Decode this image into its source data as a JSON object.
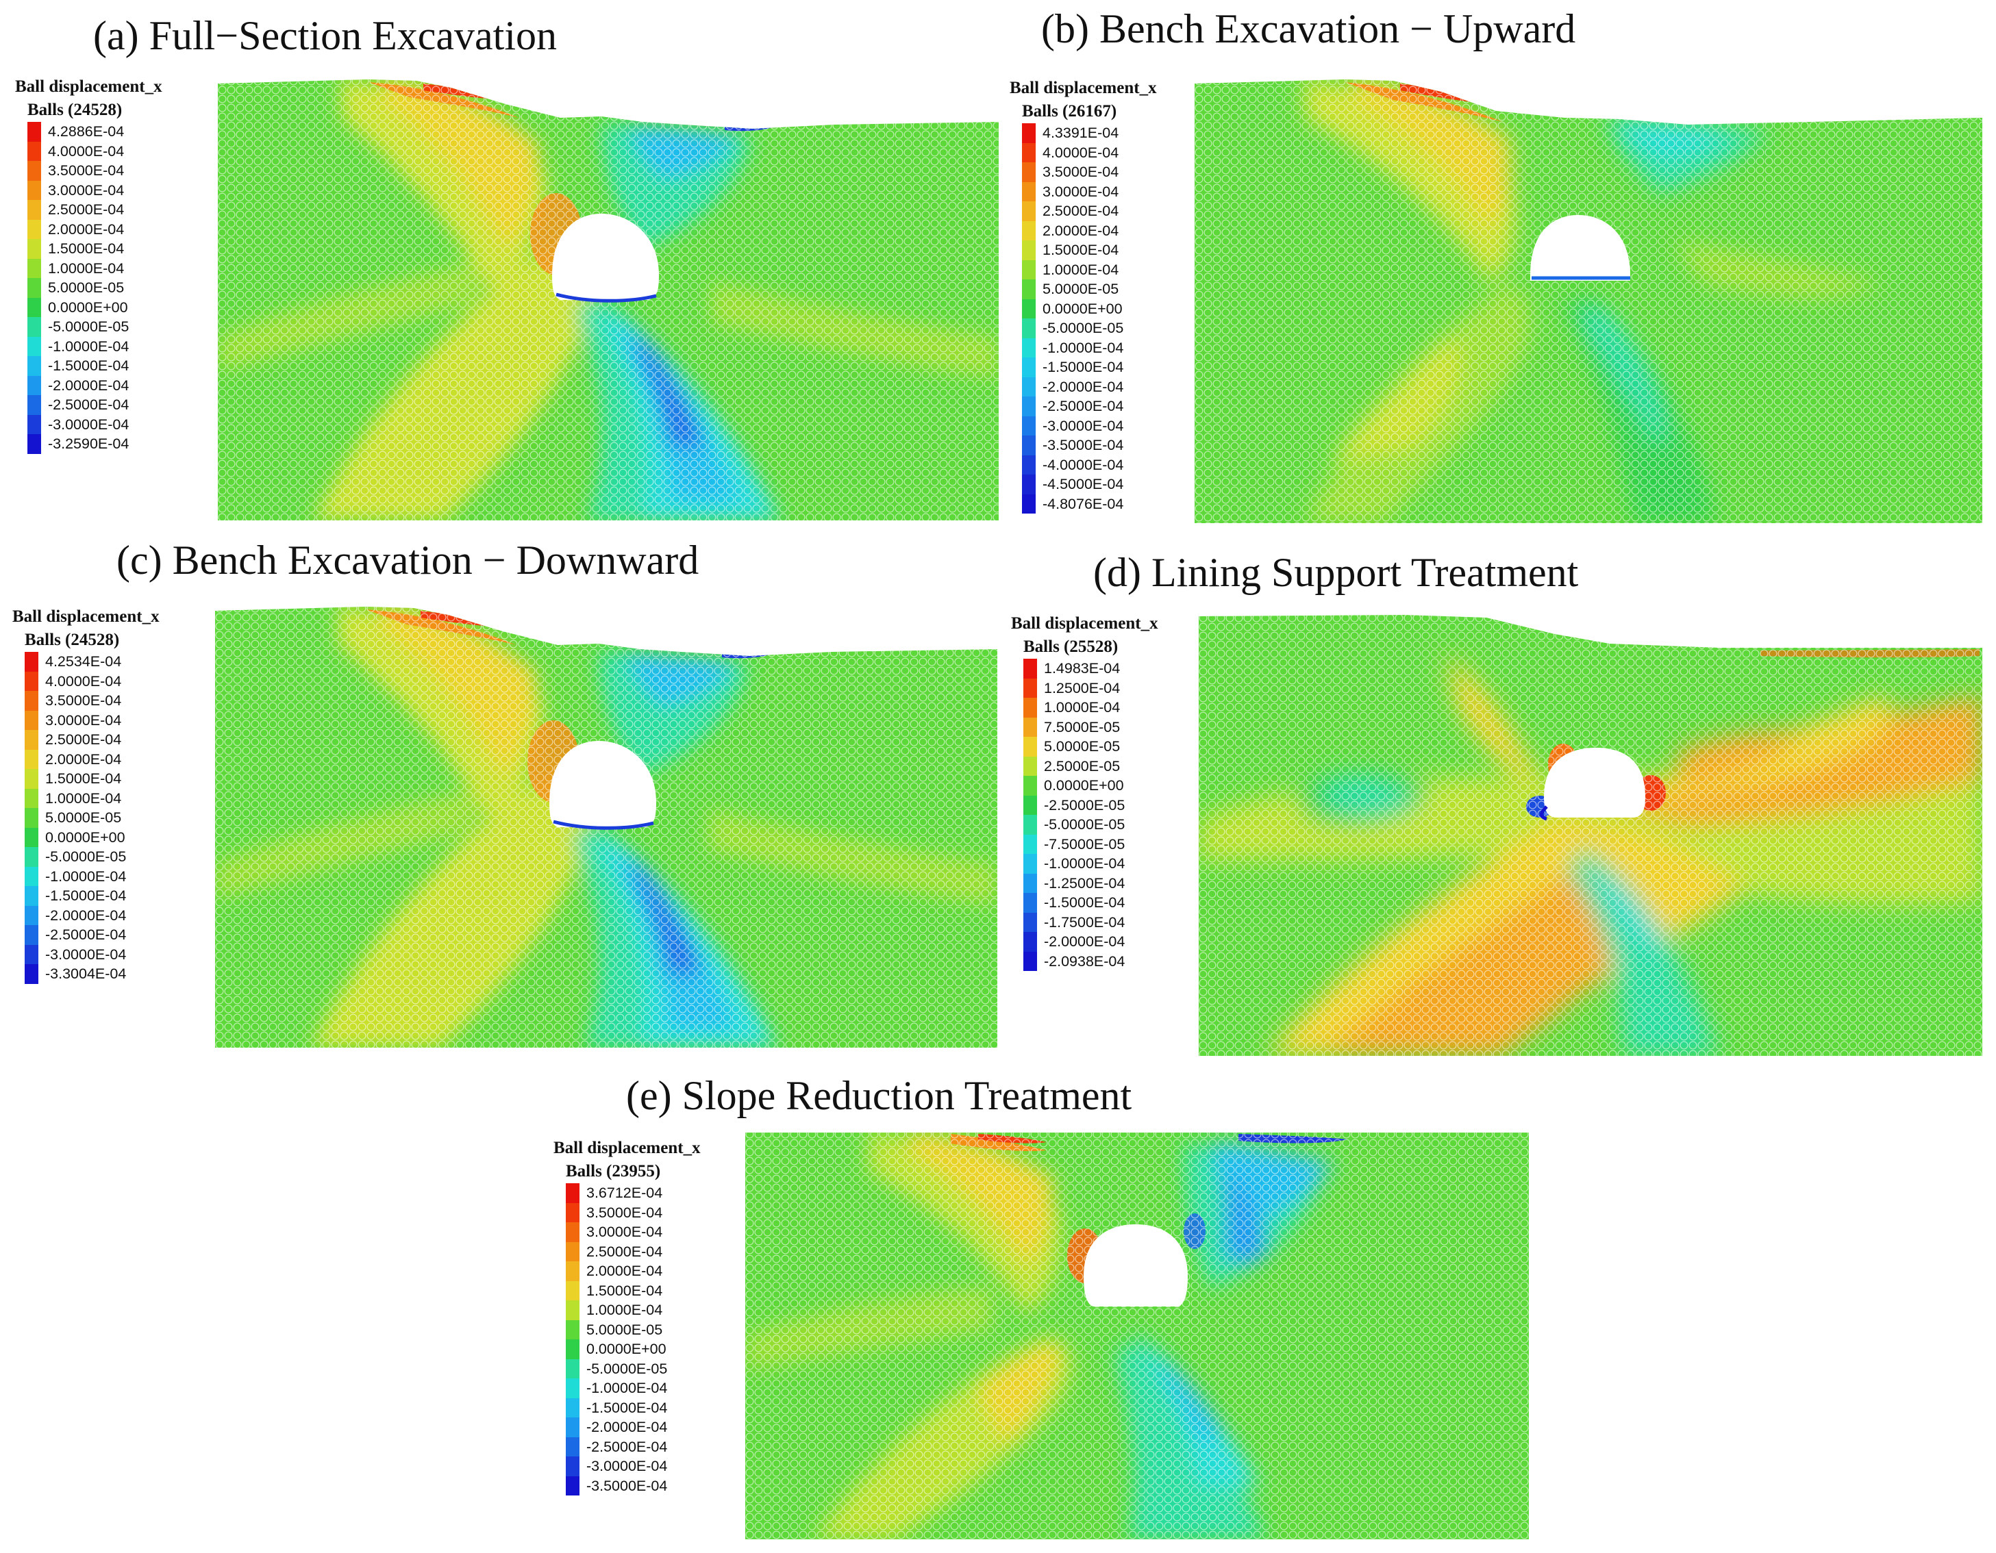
{
  "panels": [
    {
      "id": "a",
      "title": "(a) Full−Section Excavation",
      "legend_title": "Ball displacement_x",
      "legend_count": "Balls (24528)",
      "legend_values": [
        "4.2886E-04",
        "4.0000E-04",
        "3.5000E-04",
        "3.0000E-04",
        "2.5000E-04",
        "2.0000E-04",
        "1.5000E-04",
        "1.0000E-04",
        "5.0000E-05",
        "0.0000E+00",
        "-5.0000E-05",
        "-1.0000E-04",
        "-1.5000E-04",
        "-2.0000E-04",
        "-2.5000E-04",
        "-3.0000E-04",
        "-3.2590E-04"
      ],
      "legend_colors": [
        "#e8140c",
        "#f03a0a",
        "#f2680c",
        "#f29014",
        "#f2b41e",
        "#ead228",
        "#c8e02c",
        "#96de2e",
        "#5cd838",
        "#2ed04a",
        "#28dc9c",
        "#20dcd6",
        "#1ebcec",
        "#1c98ee",
        "#1a6ae6",
        "#1a3cda",
        "#1414d0"
      ]
    },
    {
      "id": "b",
      "title": "(b) Bench Excavation − Upward",
      "legend_title": "Ball displacement_x",
      "legend_count": "Balls (26167)",
      "legend_values": [
        "4.3391E-04",
        "4.0000E-04",
        "3.5000E-04",
        "3.0000E-04",
        "2.5000E-04",
        "2.0000E-04",
        "1.5000E-04",
        "1.0000E-04",
        "5.0000E-05",
        "0.0000E+00",
        "-5.0000E-05",
        "-1.0000E-04",
        "-1.5000E-04",
        "-2.0000E-04",
        "-2.5000E-04",
        "-3.0000E-04",
        "-3.5000E-04",
        "-4.0000E-04",
        "-4.5000E-04",
        "-4.8076E-04"
      ],
      "legend_colors": [
        "#e8140c",
        "#f03a0a",
        "#f2680c",
        "#f29014",
        "#f2b41e",
        "#ead228",
        "#c8e02c",
        "#96de2e",
        "#5cd838",
        "#2ed04a",
        "#28dc9c",
        "#20dcd6",
        "#1ecaea",
        "#1eb4ee",
        "#1c98ee",
        "#1a7aea",
        "#1a5ce2",
        "#1a3cda",
        "#1824d4",
        "#1414d0"
      ]
    },
    {
      "id": "c",
      "title": "(c) Bench Excavation − Downward",
      "legend_title": "Ball displacement_x",
      "legend_count": "Balls (24528)",
      "legend_values": [
        "4.2534E-04",
        "4.0000E-04",
        "3.5000E-04",
        "3.0000E-04",
        "2.5000E-04",
        "2.0000E-04",
        "1.5000E-04",
        "1.0000E-04",
        "5.0000E-05",
        "0.0000E+00",
        "-5.0000E-05",
        "-1.0000E-04",
        "-1.5000E-04",
        "-2.0000E-04",
        "-2.5000E-04",
        "-3.0000E-04",
        "-3.3004E-04"
      ],
      "legend_colors": [
        "#e8140c",
        "#f03a0a",
        "#f2680c",
        "#f29014",
        "#f2b41e",
        "#ead228",
        "#c8e02c",
        "#96de2e",
        "#5cd838",
        "#2ed04a",
        "#28dc9c",
        "#20dcd6",
        "#1ebcec",
        "#1c98ee",
        "#1a6ae6",
        "#1a3cda",
        "#1414d0"
      ]
    },
    {
      "id": "d",
      "title": "(d) Lining Support Treatment",
      "legend_title": "Ball displacement_x",
      "legend_count": "Balls (25528)",
      "legend_values": [
        "1.4983E-04",
        "1.2500E-04",
        "1.0000E-04",
        "7.5000E-05",
        "5.0000E-05",
        "2.5000E-05",
        "0.0000E+00",
        "-2.5000E-05",
        "-5.0000E-05",
        "-7.5000E-05",
        "-1.0000E-04",
        "-1.2500E-04",
        "-1.5000E-04",
        "-1.7500E-04",
        "-2.0000E-04",
        "-2.0938E-04"
      ],
      "legend_colors": [
        "#e8140c",
        "#f03a0a",
        "#f2720c",
        "#f2a41a",
        "#eed028",
        "#b8e02c",
        "#5cd838",
        "#2ed04a",
        "#28dc9c",
        "#20dcd6",
        "#1ec2ea",
        "#1c9cee",
        "#1a74e8",
        "#1a4cde",
        "#1628d4",
        "#1414d0"
      ]
    },
    {
      "id": "e",
      "title": "(e) Slope Reduction Treatment",
      "legend_title": "Ball displacement_x",
      "legend_count": "Balls (23955)",
      "legend_values": [
        "3.6712E-04",
        "3.5000E-04",
        "3.0000E-04",
        "2.5000E-04",
        "2.0000E-04",
        "1.5000E-04",
        "1.0000E-04",
        "5.0000E-05",
        "0.0000E+00",
        "-5.0000E-05",
        "-1.0000E-04",
        "-1.5000E-04",
        "-2.0000E-04",
        "-2.5000E-04",
        "-3.0000E-04",
        "-3.5000E-04"
      ],
      "legend_colors": [
        "#e8140c",
        "#f03a0a",
        "#f2680c",
        "#f29014",
        "#f2b41e",
        "#ead228",
        "#b8e02c",
        "#5cd838",
        "#2ed04a",
        "#28dc9c",
        "#20dcd6",
        "#1ebcec",
        "#1c98ee",
        "#1a6ae6",
        "#1a3cda",
        "#1414d0"
      ]
    }
  ]
}
